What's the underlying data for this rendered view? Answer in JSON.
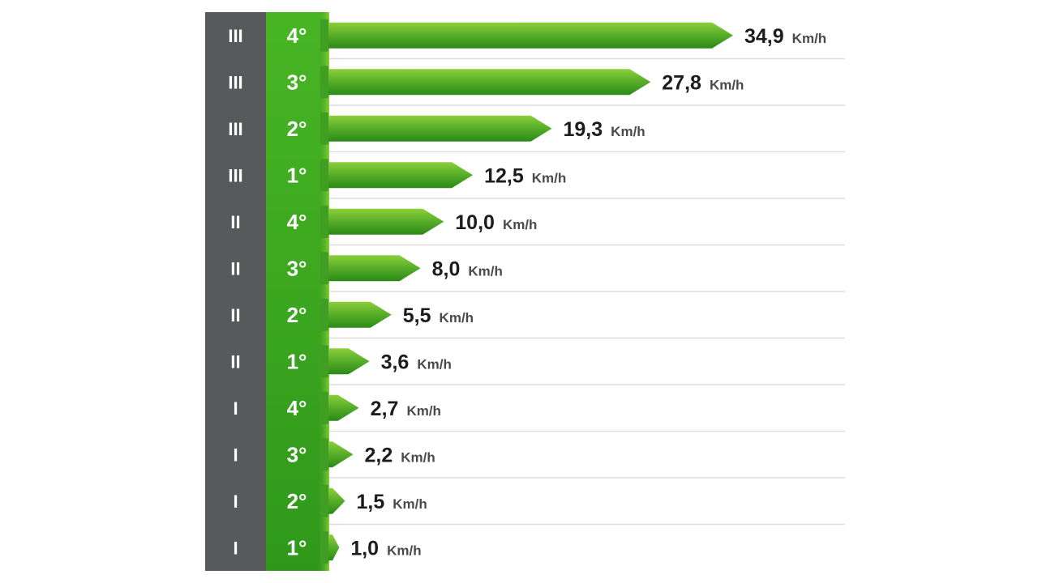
{
  "chart_data": {
    "type": "bar",
    "orientation": "horizontal",
    "unit": "Km/h",
    "title": "",
    "xlabel": "",
    "ylabel": "",
    "xlim": [
      0,
      34.9
    ],
    "grid": true,
    "legend": "none",
    "categories": [
      {
        "range": "III",
        "gear": "4°",
        "value": 34.9,
        "label": "34,9"
      },
      {
        "range": "III",
        "gear": "3°",
        "value": 27.8,
        "label": "27,8"
      },
      {
        "range": "III",
        "gear": "2°",
        "value": 19.3,
        "label": "19,3"
      },
      {
        "range": "III",
        "gear": "1°",
        "value": 12.5,
        "label": "12,5"
      },
      {
        "range": "II",
        "gear": "4°",
        "value": 10.0,
        "label": "10,0"
      },
      {
        "range": "II",
        "gear": "3°",
        "value": 8.0,
        "label": "8,0"
      },
      {
        "range": "II",
        "gear": "2°",
        "value": 5.5,
        "label": "5,5"
      },
      {
        "range": "II",
        "gear": "1°",
        "value": 3.6,
        "label": "3,6"
      },
      {
        "range": "I",
        "gear": "4°",
        "value": 2.7,
        "label": "2,7"
      },
      {
        "range": "I",
        "gear": "3°",
        "value": 2.2,
        "label": "2,2"
      },
      {
        "range": "I",
        "gear": "2°",
        "value": 1.5,
        "label": "1,5"
      },
      {
        "range": "I",
        "gear": "1°",
        "value": 1.0,
        "label": "1,0"
      }
    ]
  },
  "colors": {
    "range_column": "#58595b",
    "gear_column": "#3aa51f",
    "bar_light": "#7dc631",
    "bar_dark": "#2e8f1a",
    "gridline": "#dddddd"
  }
}
